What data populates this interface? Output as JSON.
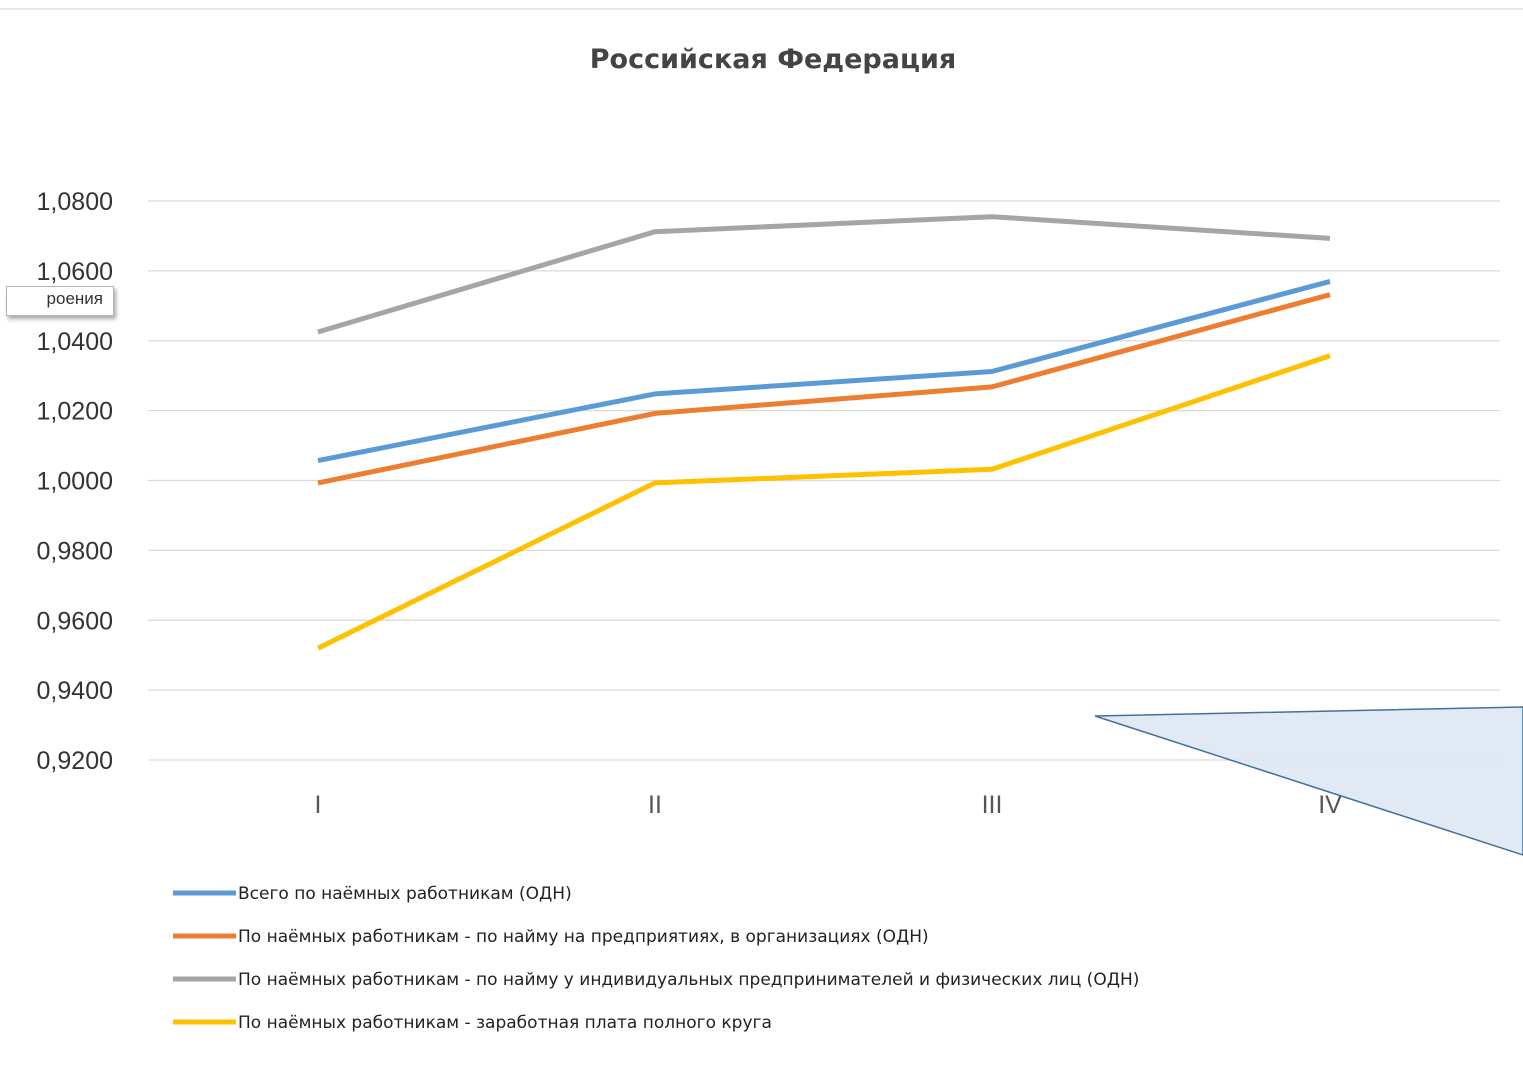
{
  "chart_data": {
    "type": "line",
    "title": "Российская Федерация",
    "categories": [
      "I",
      "II",
      "III",
      "IV"
    ],
    "ylim": [
      0.92,
      1.08
    ],
    "yticks": [
      "1,0800",
      "1,0600",
      "1,0400",
      "1,0200",
      "1,0000",
      "0,9800",
      "0,9600",
      "0,9400",
      "0,9200"
    ],
    "ytick_values": [
      1.08,
      1.06,
      1.04,
      1.02,
      1.0,
      0.98,
      0.96,
      0.94,
      0.92
    ],
    "grid": true,
    "legend_position": "bottom",
    "series": [
      {
        "name": "Всего по наёмных работникам (ОДН)",
        "values": [
          1.0057,
          1.0248,
          1.0312,
          1.057
        ],
        "color": "#5b9bd5"
      },
      {
        "name": "По наёмных работникам - по найму на предприятиях, в организациях (ОДН)",
        "values": [
          0.9993,
          1.0192,
          1.0268,
          1.0532
        ],
        "color": "#ed7d31"
      },
      {
        "name": "По наёмных работникам - по найму у индивидуальных предпринимателей и физических лиц (ОДН)",
        "values": [
          1.0425,
          1.0712,
          1.0755,
          1.0693
        ],
        "color": "#a5a5a5"
      },
      {
        "name": "По наёмных работникам - заработная плата полного круга",
        "values": [
          0.952,
          0.9993,
          1.0032,
          1.0357
        ],
        "color": "#ffc000"
      }
    ]
  },
  "tooltip": {
    "text": "роения"
  },
  "callout": {
    "fill": "#dce6f2",
    "stroke": "#41719c"
  }
}
